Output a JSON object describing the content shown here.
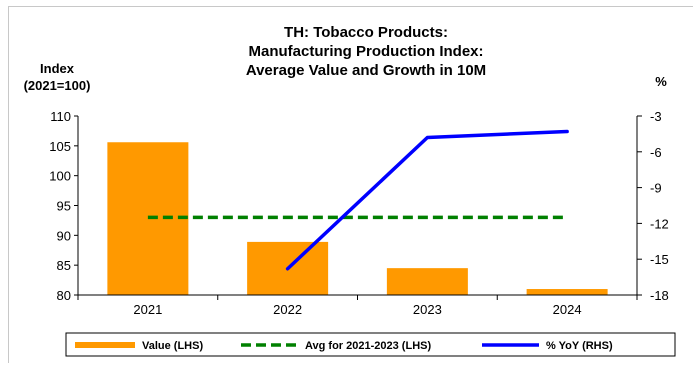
{
  "chart_data": {
    "type": "bar",
    "title_lines": [
      "TH: Tobacco Products:",
      "Manufacturing Production Index:",
      "Average Value and Growth in 10M"
    ],
    "left_axis_title": [
      "Index",
      "(2021=100)"
    ],
    "right_axis_title": "%",
    "categories": [
      "2021",
      "2022",
      "2023",
      "2024"
    ],
    "left_ylim": [
      80,
      110
    ],
    "left_ticks": [
      80,
      85,
      90,
      95,
      100,
      105,
      110
    ],
    "right_ylim": [
      -18,
      -3
    ],
    "right_ticks": [
      -18,
      -15,
      -12,
      -9,
      -6,
      -3
    ],
    "grid": false,
    "legend_position": "bottom",
    "series": [
      {
        "name": "Value (LHS)",
        "kind": "bar",
        "axis": "left",
        "color": "#FF9900",
        "values": [
          105.6,
          88.9,
          84.5,
          81.0
        ]
      },
      {
        "name": "Avg for 2021-2023 (LHS)",
        "kind": "dashed-line",
        "axis": "left",
        "color": "#008000",
        "values": [
          93.0,
          93.0,
          93.0,
          93.0
        ]
      },
      {
        "name": "% YoY (RHS)",
        "kind": "line",
        "axis": "right",
        "color": "#0000FF",
        "values": [
          null,
          -15.8,
          -4.8,
          -4.3
        ]
      }
    ]
  }
}
